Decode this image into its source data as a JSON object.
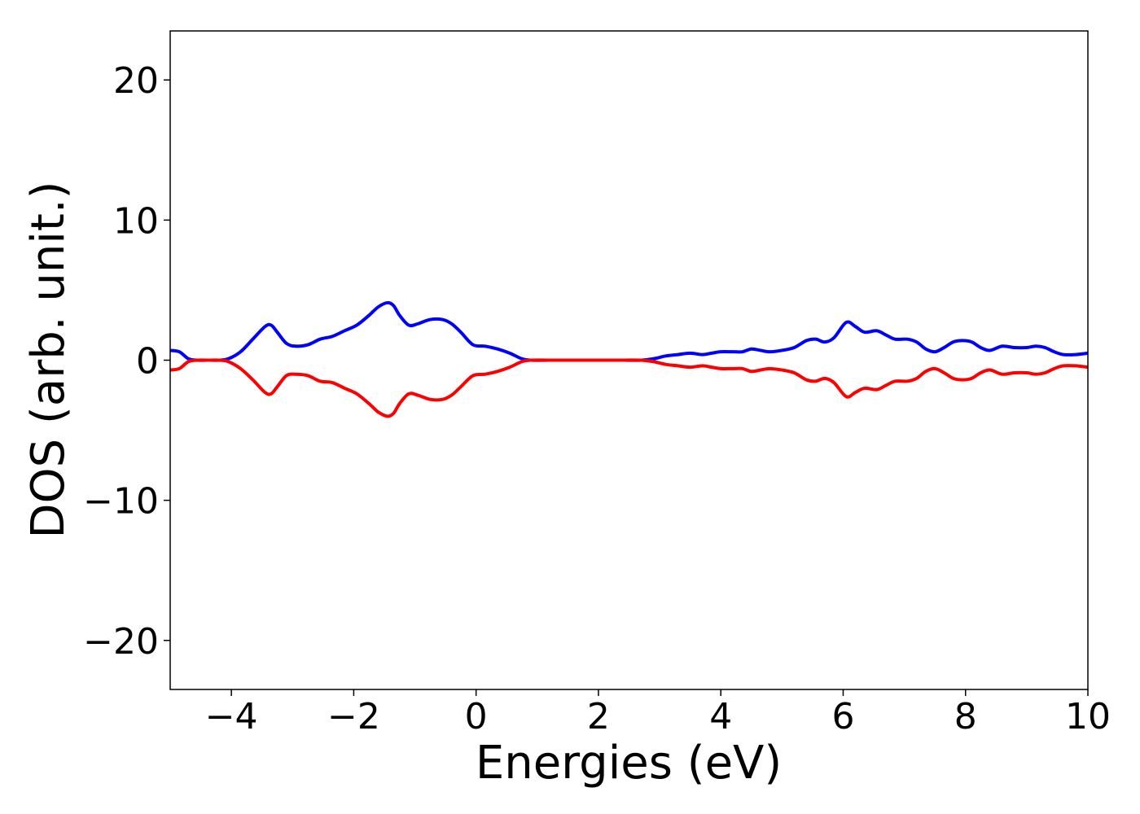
{
  "chart_data": {
    "type": "line",
    "xlabel": "Energies (eV)",
    "ylabel": "DOS (arb. unit.)",
    "xlim": [
      -5,
      10
    ],
    "ylim": [
      -23.5,
      23.5
    ],
    "xticks": [
      -4,
      -2,
      0,
      2,
      4,
      6,
      8,
      10
    ],
    "xtick_labels": [
      "−4",
      "−2",
      "0",
      "2",
      "4",
      "6",
      "8",
      "10"
    ],
    "yticks": [
      -20,
      -10,
      0,
      10,
      20
    ],
    "ytick_labels": [
      "−20",
      "−10",
      "0",
      "10",
      "20"
    ],
    "grid": false,
    "legend": "none",
    "series": [
      {
        "color": "#0000ff",
        "x": [
          -5.0,
          -4.85,
          -4.7,
          -4.55,
          -4.4,
          -4.2,
          -4.05,
          -3.85,
          -3.65,
          -3.45,
          -3.35,
          -3.25,
          -3.1,
          -2.95,
          -2.75,
          -2.55,
          -2.35,
          -2.15,
          -1.95,
          -1.75,
          -1.6,
          -1.45,
          -1.35,
          -1.25,
          -1.1,
          -0.95,
          -0.75,
          -0.55,
          -0.4,
          -0.25,
          -0.05,
          0.15,
          0.35,
          0.55,
          0.75,
          0.9,
          1.2,
          1.6,
          2.0,
          2.4,
          2.7,
          2.9,
          3.1,
          3.3,
          3.5,
          3.7,
          3.85,
          4.0,
          4.2,
          4.35,
          4.5,
          4.65,
          4.8,
          5.0,
          5.2,
          5.4,
          5.55,
          5.7,
          5.85,
          6.05,
          6.2,
          6.35,
          6.55,
          6.7,
          6.85,
          7.05,
          7.2,
          7.35,
          7.5,
          7.65,
          7.8,
          7.95,
          8.1,
          8.25,
          8.4,
          8.6,
          8.8,
          9.0,
          9.15,
          9.3,
          9.45,
          9.6,
          9.8,
          10.0
        ],
        "y": [
          0.7,
          0.6,
          0.1,
          0.0,
          0.0,
          0.0,
          0.1,
          0.6,
          1.5,
          2.4,
          2.5,
          2.0,
          1.2,
          1.0,
          1.1,
          1.5,
          1.7,
          2.1,
          2.5,
          3.2,
          3.8,
          4.1,
          3.9,
          3.2,
          2.5,
          2.6,
          2.9,
          2.9,
          2.6,
          2.0,
          1.1,
          1.0,
          0.8,
          0.5,
          0.1,
          0.0,
          0.0,
          0.0,
          0.0,
          0.0,
          0.0,
          0.1,
          0.3,
          0.4,
          0.5,
          0.4,
          0.5,
          0.6,
          0.6,
          0.6,
          0.8,
          0.7,
          0.6,
          0.7,
          0.9,
          1.4,
          1.5,
          1.3,
          1.6,
          2.7,
          2.4,
          2.0,
          2.1,
          1.8,
          1.5,
          1.5,
          1.3,
          0.8,
          0.6,
          0.9,
          1.3,
          1.4,
          1.3,
          0.9,
          0.7,
          1.0,
          0.9,
          0.9,
          1.0,
          0.9,
          0.6,
          0.4,
          0.4,
          0.5
        ]
      },
      {
        "color": "#ff0000",
        "x": [
          -5.0,
          -4.85,
          -4.7,
          -4.55,
          -4.4,
          -4.2,
          -4.05,
          -3.85,
          -3.65,
          -3.45,
          -3.35,
          -3.25,
          -3.1,
          -2.95,
          -2.75,
          -2.55,
          -2.35,
          -2.15,
          -1.95,
          -1.75,
          -1.6,
          -1.45,
          -1.35,
          -1.25,
          -1.1,
          -0.95,
          -0.75,
          -0.55,
          -0.4,
          -0.25,
          -0.05,
          0.15,
          0.35,
          0.55,
          0.75,
          0.9,
          1.2,
          1.6,
          2.0,
          2.4,
          2.7,
          2.9,
          3.1,
          3.3,
          3.5,
          3.7,
          3.85,
          4.0,
          4.2,
          4.35,
          4.5,
          4.65,
          4.8,
          5.0,
          5.2,
          5.4,
          5.55,
          5.7,
          5.85,
          6.05,
          6.2,
          6.35,
          6.55,
          6.7,
          6.85,
          7.05,
          7.2,
          7.35,
          7.5,
          7.65,
          7.8,
          7.95,
          8.1,
          8.25,
          8.4,
          8.6,
          8.8,
          9.0,
          9.15,
          9.3,
          9.45,
          9.6,
          9.8,
          10.0
        ],
        "y": [
          -0.7,
          -0.6,
          -0.1,
          0.0,
          0.0,
          0.0,
          -0.1,
          -0.6,
          -1.4,
          -2.3,
          -2.4,
          -1.9,
          -1.1,
          -1.0,
          -1.1,
          -1.5,
          -1.6,
          -2.0,
          -2.4,
          -3.1,
          -3.7,
          -4.0,
          -3.8,
          -3.1,
          -2.4,
          -2.5,
          -2.8,
          -2.8,
          -2.5,
          -1.9,
          -1.1,
          -1.0,
          -0.8,
          -0.5,
          -0.1,
          0.0,
          0.0,
          0.0,
          0.0,
          0.0,
          0.0,
          -0.1,
          -0.3,
          -0.4,
          -0.5,
          -0.4,
          -0.5,
          -0.6,
          -0.6,
          -0.6,
          -0.8,
          -0.7,
          -0.6,
          -0.7,
          -0.9,
          -1.4,
          -1.5,
          -1.3,
          -1.6,
          -2.6,
          -2.3,
          -2.0,
          -2.1,
          -1.8,
          -1.5,
          -1.5,
          -1.3,
          -0.8,
          -0.6,
          -0.9,
          -1.3,
          -1.4,
          -1.3,
          -0.9,
          -0.7,
          -1.0,
          -0.9,
          -0.9,
          -1.0,
          -0.9,
          -0.6,
          -0.4,
          -0.4,
          -0.5
        ]
      }
    ]
  }
}
